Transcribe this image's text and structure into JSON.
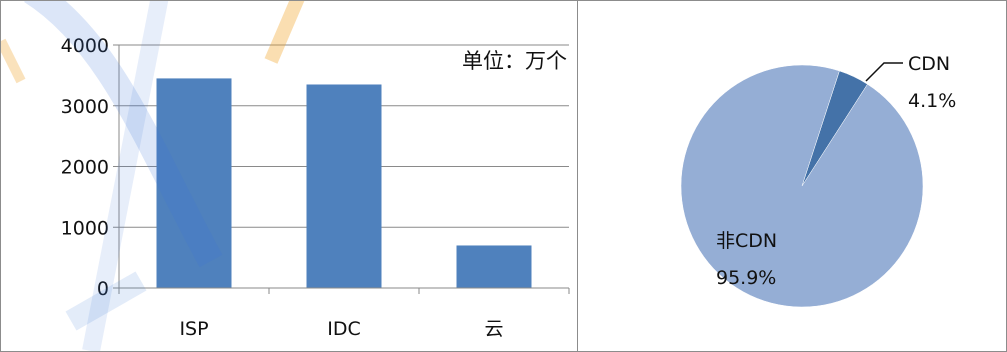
{
  "chart_data": [
    {
      "type": "bar",
      "categories": [
        "ISP",
        "IDC",
        "云"
      ],
      "values": [
        3450,
        3350,
        700
      ],
      "unit_label": "单位：万个",
      "yticks": [
        "0",
        "1000",
        "2000",
        "3000",
        "4000"
      ],
      "ylim": [
        0,
        4000
      ],
      "grid": true,
      "color": "#4f81bd"
    },
    {
      "type": "pie",
      "slices": [
        {
          "name": "CDN",
          "value": 4.1,
          "label": "4.1%",
          "color": "#4472a8"
        },
        {
          "name": "非CDN",
          "value": 95.9,
          "label": "95.9%",
          "color": "#95aed5"
        }
      ]
    }
  ]
}
